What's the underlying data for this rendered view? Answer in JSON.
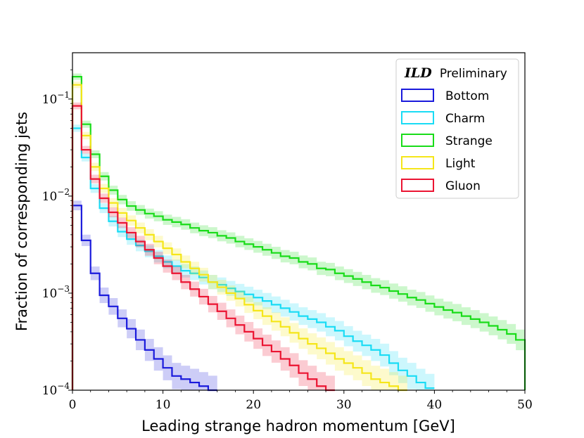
{
  "chart_data": {
    "type": "line",
    "title": "",
    "xlabel": "Leading strange hadron momentum [GeV]",
    "ylabel": "Fraction of corresponding jets",
    "xlim": [
      0,
      50
    ],
    "ylim": [
      0.0001,
      0.3
    ],
    "yscale": "log",
    "x_ticks": [
      0,
      10,
      20,
      30,
      40,
      50
    ],
    "x_tick_labels": [
      "0",
      "10",
      "20",
      "30",
      "40",
      "50"
    ],
    "y_ticks": [
      0.0001,
      0.001,
      0.01,
      0.1
    ],
    "y_tick_bases": [
      "10",
      "10",
      "10",
      "10"
    ],
    "y_tick_exps": [
      "−4",
      "−3",
      "−2",
      "−1"
    ],
    "legend": {
      "location": "top-right",
      "title_bold": "ILD",
      "title_rest": "Preliminary"
    },
    "series": [
      {
        "name": "Bottom",
        "color": "#1a1adc",
        "x": [
          0,
          1,
          2,
          3,
          4,
          5,
          6,
          7,
          8,
          9,
          10,
          11,
          12,
          13,
          14,
          15
        ],
        "values": [
          0.008,
          0.0035,
          0.0016,
          0.00095,
          0.00073,
          0.00055,
          0.00043,
          0.00033,
          0.00026,
          0.00021,
          0.00017,
          0.00014,
          0.00013,
          0.00012,
          0.00011,
          0.0001
        ]
      },
      {
        "name": "Charm",
        "color": "#19dcf5",
        "x": [
          0,
          1,
          2,
          3,
          4,
          5,
          6,
          7,
          8,
          9,
          10,
          11,
          12,
          13,
          14,
          15,
          16,
          17,
          18,
          19,
          20,
          21,
          22,
          23,
          24,
          25,
          26,
          27,
          28,
          29,
          30,
          31,
          32,
          33,
          34,
          35,
          36,
          37,
          38,
          39
        ],
        "values": [
          0.05,
          0.025,
          0.012,
          0.0075,
          0.0055,
          0.0043,
          0.0036,
          0.0031,
          0.0027,
          0.0024,
          0.0021,
          0.0019,
          0.0017,
          0.0016,
          0.00145,
          0.0013,
          0.00122,
          0.00112,
          0.00104,
          0.00097,
          0.0009,
          0.00083,
          0.00076,
          0.0007,
          0.00064,
          0.00058,
          0.00054,
          0.0005,
          0.00045,
          0.00041,
          0.00036,
          0.00032,
          0.00029,
          0.00026,
          0.00023,
          0.00019,
          0.00016,
          0.00014,
          0.00012,
          0.000105
        ]
      },
      {
        "name": "Strange",
        "color": "#19dc19",
        "x": [
          0,
          1,
          2,
          3,
          4,
          5,
          6,
          7,
          8,
          9,
          10,
          11,
          12,
          13,
          14,
          15,
          16,
          17,
          18,
          19,
          20,
          21,
          22,
          23,
          24,
          25,
          26,
          27,
          28,
          29,
          30,
          31,
          32,
          33,
          34,
          35,
          36,
          37,
          38,
          39,
          40,
          41,
          42,
          43,
          44,
          45,
          46,
          47,
          48,
          49
        ],
        "values": [
          0.17,
          0.055,
          0.027,
          0.016,
          0.0115,
          0.0092,
          0.0079,
          0.0072,
          0.0066,
          0.0062,
          0.0057,
          0.0054,
          0.0051,
          0.0047,
          0.0044,
          0.0042,
          0.0039,
          0.0037,
          0.0034,
          0.0032,
          0.003,
          0.0028,
          0.0026,
          0.0024,
          0.0023,
          0.0021,
          0.002,
          0.0018,
          0.00175,
          0.0016,
          0.0015,
          0.0014,
          0.0013,
          0.0012,
          0.00114,
          0.00105,
          0.00098,
          0.0009,
          0.00085,
          0.00078,
          0.00072,
          0.00067,
          0.00063,
          0.00058,
          0.00054,
          0.0005,
          0.00046,
          0.00042,
          0.00038,
          0.00033
        ]
      },
      {
        "name": "Light",
        "color": "#f5e619",
        "x": [
          0,
          1,
          2,
          3,
          4,
          5,
          6,
          7,
          8,
          9,
          10,
          11,
          12,
          13,
          14,
          15,
          16,
          17,
          18,
          19,
          20,
          21,
          22,
          23,
          24,
          25,
          26,
          27,
          28,
          29,
          30,
          31,
          32,
          33,
          34,
          35,
          36
        ],
        "values": [
          0.14,
          0.042,
          0.02,
          0.012,
          0.0085,
          0.0067,
          0.0056,
          0.0047,
          0.004,
          0.0034,
          0.0029,
          0.0025,
          0.0021,
          0.0018,
          0.00155,
          0.0013,
          0.00115,
          0.001,
          0.00088,
          0.00076,
          0.00066,
          0.00058,
          0.00051,
          0.00045,
          0.00039,
          0.00034,
          0.0003,
          0.00027,
          0.00024,
          0.00021,
          0.00019,
          0.00017,
          0.00015,
          0.00013,
          0.00012,
          0.00011,
          0.0001
        ]
      },
      {
        "name": "Gluon",
        "color": "#eb1432",
        "x": [
          0,
          1,
          2,
          3,
          4,
          5,
          6,
          7,
          8,
          9,
          10,
          11,
          12,
          13,
          14,
          15,
          16,
          17,
          18,
          19,
          20,
          21,
          22,
          23,
          24,
          25,
          26,
          27,
          28
        ],
        "values": [
          0.085,
          0.03,
          0.015,
          0.0095,
          0.0068,
          0.0053,
          0.0042,
          0.0034,
          0.0028,
          0.0023,
          0.0019,
          0.0016,
          0.0013,
          0.0011,
          0.00092,
          0.00077,
          0.00065,
          0.00055,
          0.00047,
          0.0004,
          0.00034,
          0.00029,
          0.00025,
          0.00021,
          0.00018,
          0.00015,
          0.00013,
          0.00011,
          0.0001
        ]
      }
    ]
  }
}
